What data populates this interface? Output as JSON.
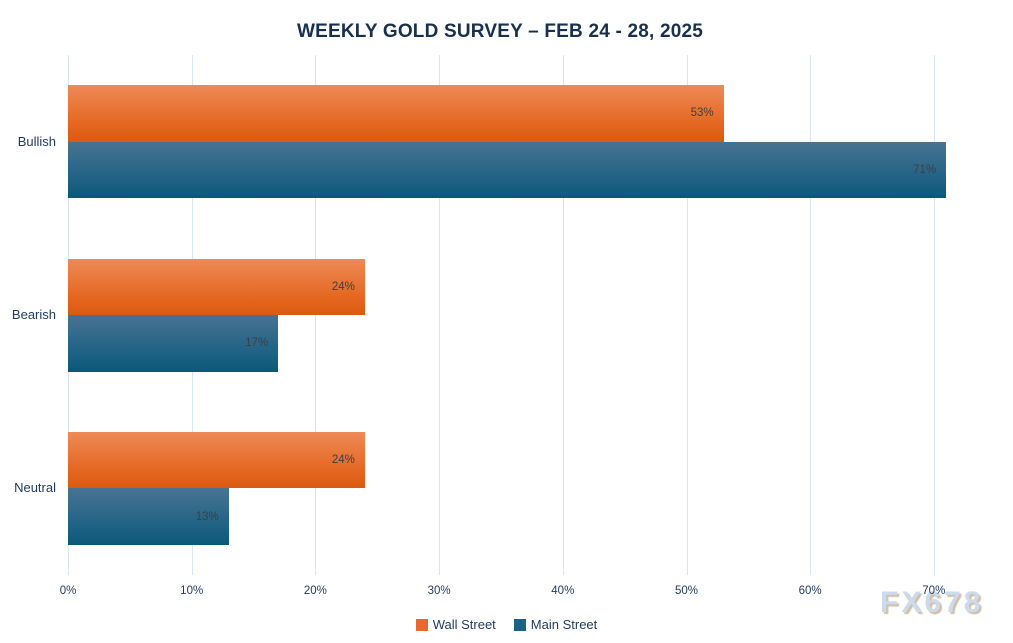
{
  "title": "WEEKLY GOLD SURVEY – FEB 24 - 28, 2025",
  "watermark": "FX678",
  "colors": {
    "wall_street_orange": "#ed672c",
    "main_street_blue": "#1a6289",
    "navy_text": "#1e3a5e",
    "title_navy": "#16304e",
    "gridline_blue": "#d7e5f5",
    "value_label_gray": "#3f3f3f",
    "watermark_blue": "#cbdbeb"
  },
  "chart_data": {
    "type": "bar",
    "orientation": "horizontal",
    "title": "WEEKLY GOLD SURVEY – FEB 24 - 28, 2025",
    "categories": [
      "Bullish",
      "Bearish",
      "Neutral"
    ],
    "series": [
      {
        "name": "Wall Street",
        "color": "#ed672c",
        "values": [
          53,
          24,
          24
        ]
      },
      {
        "name": "Main Street",
        "color": "#1a6289",
        "values": [
          71,
          17,
          13
        ]
      }
    ],
    "value_labels": [
      [
        "53%",
        "24%",
        "24%"
      ],
      [
        "71%",
        "17%",
        "13%"
      ]
    ],
    "xlabel": "",
    "ylabel": "",
    "x_ticks": [
      0,
      10,
      20,
      30,
      40,
      50,
      60,
      70
    ],
    "x_tick_labels": [
      "0%",
      "10%",
      "20%",
      "30%",
      "40%",
      "50%",
      "60%",
      "70%"
    ],
    "xlim": [
      0,
      76.4
    ],
    "grid": "vertical-only",
    "legend_position": "bottom-center",
    "bar_label_position": "inside-end"
  }
}
